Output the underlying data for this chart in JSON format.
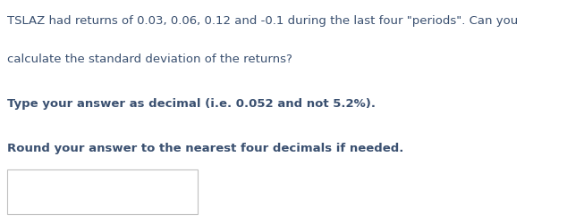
{
  "line1": "TSLAZ had returns of 0.03, 0.06, 0.12 and -0.1 during the last four \"periods\". Can you",
  "line2": "calculate the standard deviation of the returns?",
  "line3": "Type your answer as decimal (i.e. 0.052 and not 5.2%).",
  "line4": "Round your answer to the nearest four decimals if needed.",
  "text_color": "#3a5070",
  "background_color": "#ffffff",
  "font_size": 9.5,
  "box_color": "#c0c0c0"
}
